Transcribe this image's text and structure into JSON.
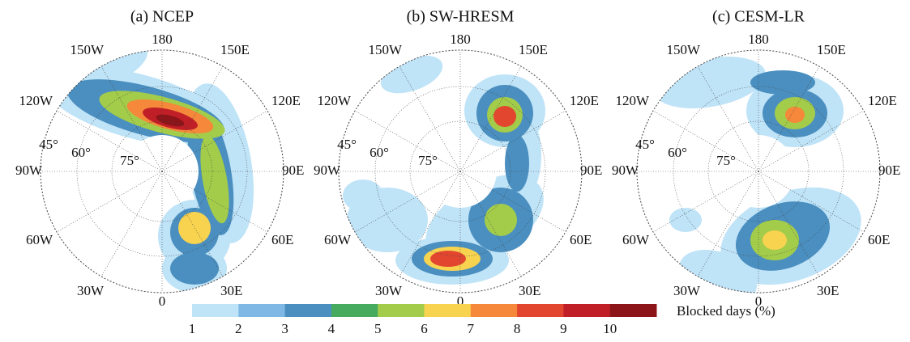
{
  "panels": [
    {
      "title": "(a) NCEP",
      "lon_labels": [
        "180",
        "150E",
        "120E",
        "90E",
        "60E",
        "30E",
        "0",
        "30W",
        "60W",
        "90W",
        "120W",
        "150W"
      ],
      "lat_labels": [
        "45°",
        "60°",
        "75°"
      ]
    },
    {
      "title": "(b) SW-HRESM",
      "lon_labels": [
        "180",
        "150E",
        "120E",
        "90E",
        "60E",
        "30E",
        "0",
        "30W",
        "60W",
        "90W",
        "120W",
        "150W"
      ],
      "lat_labels": [
        "45°",
        "60°",
        "75°"
      ]
    },
    {
      "title": "(c) CESM-LR",
      "lon_labels": [
        "180",
        "150E",
        "120E",
        "90E",
        "60E",
        "30E",
        "0",
        "30W",
        "60W",
        "90W",
        "120W",
        "150W"
      ],
      "lat_labels": [
        "45°",
        "60°",
        "75°"
      ]
    }
  ],
  "colorbar": {
    "label": "Blocked days (%)",
    "ticks": [
      1,
      2,
      3,
      4,
      5,
      6,
      7,
      8,
      9,
      10
    ],
    "colors": [
      "#bfe3f7",
      "#7fb8e4",
      "#4a8fc0",
      "#46ab5e",
      "#a3cc4a",
      "#f8d34f",
      "#f5883a",
      "#e2462f",
      "#c11f27",
      "#8b1519"
    ]
  }
}
